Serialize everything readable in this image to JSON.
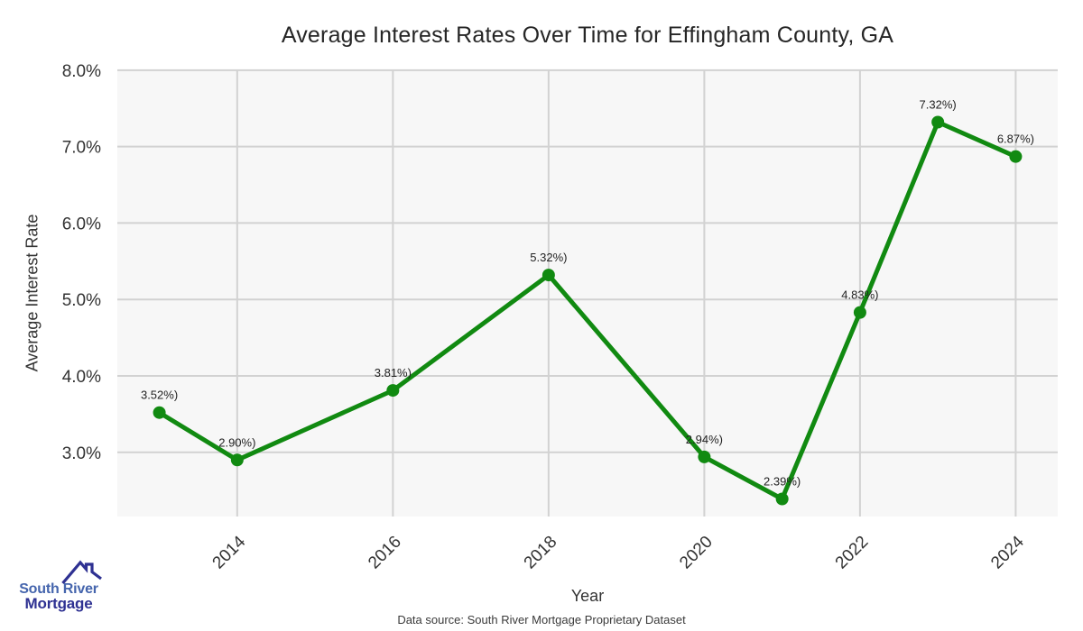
{
  "chart_data": {
    "type": "line",
    "title": "Average Interest Rates Over Time for Effingham County, GA",
    "xlabel": "Year",
    "ylabel": "Average Interest Rate",
    "x": [
      2013,
      2014,
      2016,
      2018,
      2020,
      2021,
      2022,
      2023,
      2024
    ],
    "values": [
      3.52,
      2.9,
      3.81,
      5.32,
      2.94,
      2.39,
      4.83,
      7.32,
      6.87
    ],
    "point_labels": [
      "3.52%)",
      "2.90%)",
      "3.81%)",
      "5.32%)",
      "2.94%)",
      "2.39%)",
      "4.83%)",
      "7.32%)",
      "6.87%)"
    ],
    "xticks": [
      2014,
      2016,
      2018,
      2020,
      2022,
      2024
    ],
    "yticks": [
      {
        "value": 3.0,
        "label": "3.0%"
      },
      {
        "value": 4.0,
        "label": "4.0%"
      },
      {
        "value": 5.0,
        "label": "5.0%"
      },
      {
        "value": 6.0,
        "label": "6.0%"
      },
      {
        "value": 7.0,
        "label": "7.0%"
      },
      {
        "value": 8.0,
        "label": "8.0%"
      }
    ],
    "xlim": [
      2012.46,
      2024.54
    ],
    "ylim": [
      2.16,
      8.01
    ],
    "grid": true,
    "legend": "none",
    "line_color": "#118a11",
    "marker_color": "#118a11",
    "plot_bg": "#f7f7f7",
    "grid_color": "#d2d2d2",
    "tick_color": "#333333",
    "label_color": "#222222"
  },
  "footer": {
    "source_text": "Data source: South River Mortgage Proprietary Dataset"
  },
  "logo": {
    "line1": "South River",
    "line2": "Mortgage",
    "line1_color": "#4565ad",
    "line2_color": "#2e3192",
    "roof_color": "#2e3192"
  }
}
